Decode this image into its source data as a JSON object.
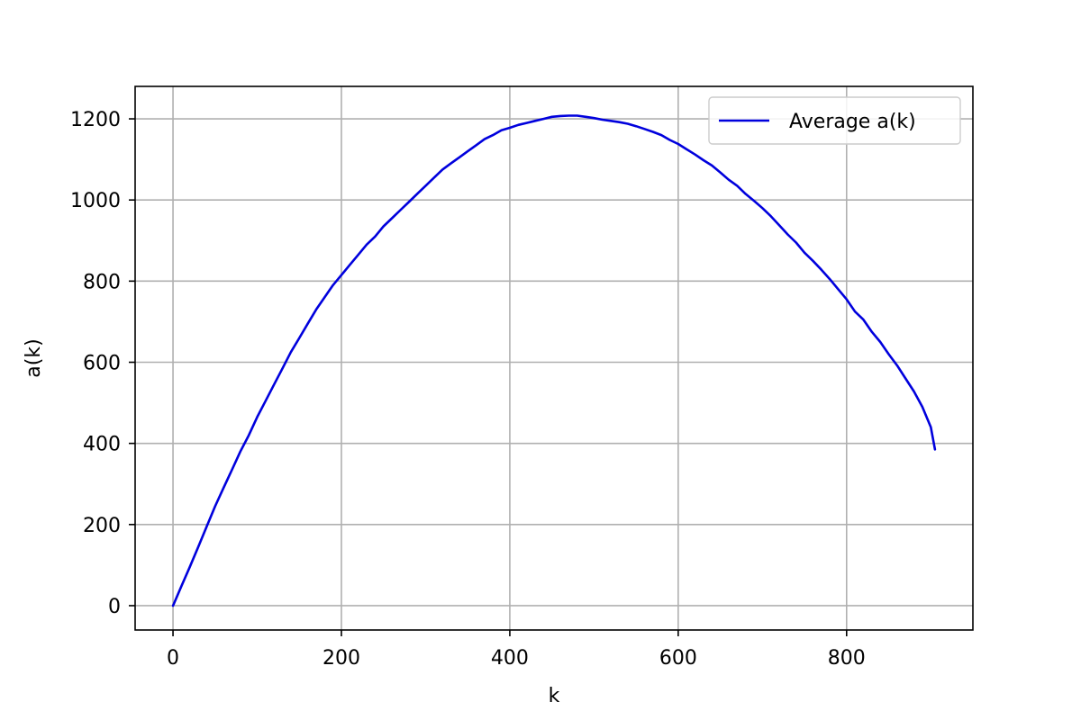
{
  "chart_data": {
    "type": "line",
    "title": "",
    "xlabel": "k",
    "ylabel": "a(k)",
    "xlim": [
      -45,
      950
    ],
    "ylim": [
      -60,
      1280
    ],
    "xticks": [
      0,
      200,
      400,
      600,
      800
    ],
    "yticks": [
      0,
      200,
      400,
      600,
      800,
      1000,
      1200
    ],
    "grid": true,
    "legend_position": "top-right",
    "series": [
      {
        "name": "Average a(k)",
        "color": "#0000dd",
        "x": [
          0,
          10,
          20,
          30,
          40,
          50,
          60,
          70,
          80,
          90,
          100,
          110,
          120,
          130,
          140,
          150,
          160,
          170,
          180,
          190,
          200,
          210,
          220,
          230,
          240,
          250,
          260,
          270,
          280,
          290,
          300,
          310,
          320,
          330,
          340,
          350,
          360,
          370,
          380,
          390,
          400,
          410,
          420,
          430,
          440,
          450,
          460,
          470,
          480,
          490,
          500,
          510,
          520,
          530,
          540,
          550,
          560,
          570,
          580,
          590,
          600,
          610,
          620,
          630,
          640,
          650,
          660,
          670,
          680,
          690,
          700,
          710,
          720,
          730,
          740,
          750,
          760,
          770,
          780,
          790,
          800,
          810,
          820,
          830,
          840,
          850,
          860,
          870,
          880,
          890,
          900,
          905
        ],
        "y": [
          0,
          48,
          96,
          145,
          195,
          245,
          290,
          335,
          380,
          420,
          465,
          505,
          545,
          585,
          625,
          660,
          695,
          730,
          760,
          790,
          815,
          840,
          865,
          890,
          910,
          935,
          955,
          975,
          995,
          1015,
          1035,
          1055,
          1075,
          1090,
          1105,
          1120,
          1135,
          1150,
          1160,
          1172,
          1178,
          1185,
          1190,
          1195,
          1200,
          1205,
          1207,
          1208,
          1208,
          1205,
          1202,
          1198,
          1195,
          1192,
          1188,
          1182,
          1175,
          1168,
          1160,
          1148,
          1138,
          1125,
          1112,
          1098,
          1085,
          1068,
          1050,
          1035,
          1015,
          998,
          980,
          960,
          938,
          915,
          895,
          870,
          850,
          828,
          805,
          780,
          755,
          725,
          705,
          675,
          650,
          620,
          592,
          560,
          528,
          490,
          440,
          385
        ]
      }
    ]
  }
}
